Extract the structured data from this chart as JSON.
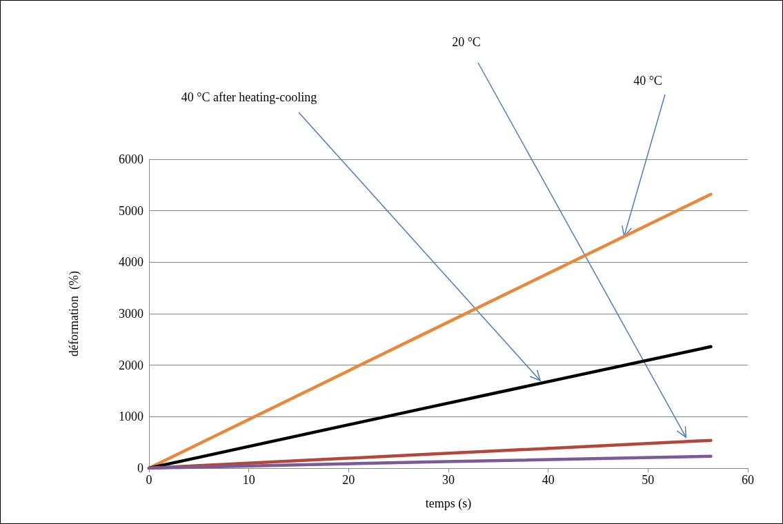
{
  "chart_data": {
    "type": "line",
    "xlabel": "temps (s)",
    "ylabel": "déformation  (%)",
    "xlim": [
      0,
      60
    ],
    "xticks": [
      0,
      10,
      20,
      30,
      40,
      50,
      60
    ],
    "ylim": [
      0,
      6000
    ],
    "yticks": [
      0,
      1000,
      2000,
      3000,
      4000,
      5000,
      6000
    ],
    "grid": "y",
    "marker": "none",
    "line_style": "solid",
    "series": [
      {
        "color": "#e8883a",
        "x": [
          0,
          28,
          56.3
        ],
        "values": [
          0,
          2650,
          5320
        ]
      },
      {
        "color": "#000000",
        "x": [
          0,
          28,
          56.3
        ],
        "values": [
          0,
          1180,
          2360
        ]
      },
      {
        "color": "#b5473a",
        "x": [
          0,
          28,
          56.3
        ],
        "values": [
          0,
          270,
          540
        ]
      },
      {
        "color": "#7b5a9a",
        "x": [
          0,
          28,
          56.3
        ],
        "values": [
          0,
          120,
          230
        ]
      }
    ],
    "annotations": [
      {
        "text": "40 °C after heating-cooling",
        "x": 39.2,
        "y": 1700
      },
      {
        "text": "20 °C",
        "x": 53.8,
        "y": 600
      },
      {
        "text": "40 °C",
        "x": 47.6,
        "y": 4500
      }
    ]
  }
}
